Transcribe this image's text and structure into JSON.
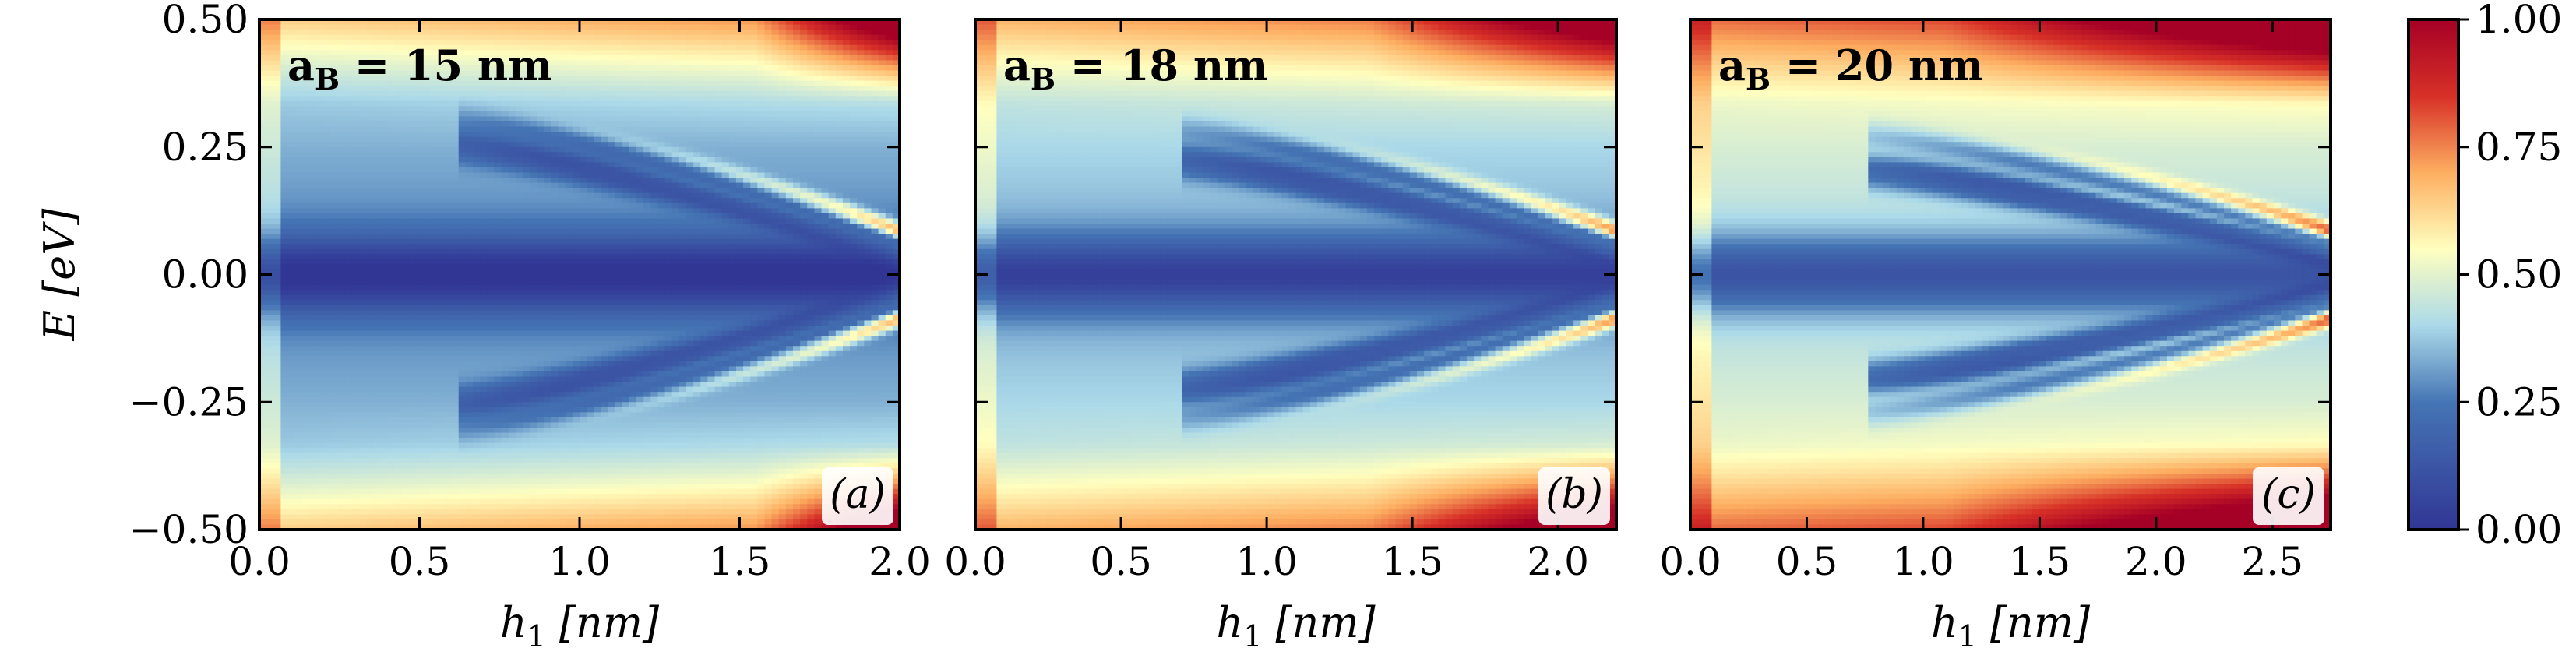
{
  "figure": {
    "colormap": "RdYlBu_r",
    "colors": {
      "low": "#313695",
      "mid_low": "#abd9e9",
      "mid": "#ffffbf",
      "mid_high": "#fdae61",
      "high": "#a50026"
    }
  },
  "chart_data": [
    {
      "type": "heatmap",
      "panel": "(a)",
      "annotation": "a_B  =  15 nm",
      "param_symbol": "a",
      "param_subscript": "B",
      "param_text": "=  15 nm",
      "xlabel_symbol": "h",
      "xlabel_subscript": "1",
      "xlabel_unit": "[nm]",
      "ylabel_symbol": "E",
      "ylabel_unit": "[eV]",
      "xlim": [
        0.0,
        2.0
      ],
      "ylim": [
        -0.5,
        0.5
      ],
      "xticks": [
        "0.0",
        "0.5",
        "1.0",
        "1.5",
        "2.0"
      ],
      "xtick_values": [
        0.0,
        0.5,
        1.0,
        1.5,
        2.0
      ],
      "yticks": [
        "−0.50",
        "−0.25",
        "0.00",
        "0.25",
        "0.50"
      ],
      "ytick_values": [
        -0.5,
        -0.25,
        0.0,
        0.25,
        0.5
      ],
      "vmin": 0.0,
      "vmax": 1.0,
      "background_value": 0.28,
      "edge_value": 0.78,
      "edge_onset_x": 1.55,
      "band_start_x": 0.62,
      "bands": [
        {
          "E0": 0.26,
          "slope": 0.1,
          "value": 0.03
        },
        {
          "E0": 0.24,
          "slope": 0.055,
          "value": 0.12
        },
        {
          "E0": 0.3,
          "slope": 0.14,
          "value": 0.2
        }
      ]
    },
    {
      "type": "heatmap",
      "panel": "(b)",
      "annotation": "a_B  =  18 nm",
      "param_symbol": "a",
      "param_subscript": "B",
      "param_text": "=  18 nm",
      "xlabel_symbol": "h",
      "xlabel_subscript": "1",
      "xlabel_unit": "[nm]",
      "xlim": [
        0.0,
        2.2
      ],
      "ylim": [
        -0.5,
        0.5
      ],
      "xticks": [
        "0.0",
        "0.5",
        "1.0",
        "1.5",
        "2.0"
      ],
      "xtick_values": [
        0.0,
        0.5,
        1.0,
        1.5,
        2.0
      ],
      "yticks": [
        "−0.50",
        "−0.25",
        "0.00",
        "0.25",
        "0.50"
      ],
      "ytick_values": [
        -0.5,
        -0.25,
        0.0,
        0.25,
        0.5
      ],
      "vmin": 0.0,
      "vmax": 1.0,
      "background_value": 0.34,
      "edge_value": 0.8,
      "edge_onset_x": 1.35,
      "band_start_x": 0.7,
      "bands": [
        {
          "E0": 0.23,
          "slope": 0.11,
          "value": 0.03
        },
        {
          "E0": 0.21,
          "slope": 0.06,
          "value": 0.14
        },
        {
          "E0": 0.28,
          "slope": 0.15,
          "value": 0.22
        }
      ]
    },
    {
      "type": "heatmap",
      "panel": "(c)",
      "annotation": "a_B  =  20 nm",
      "param_symbol": "a",
      "param_subscript": "B",
      "param_text": "=  20 nm",
      "xlabel_symbol": "h",
      "xlabel_subscript": "1",
      "xlabel_unit": "[nm]",
      "xlim": [
        0.0,
        2.75
      ],
      "ylim": [
        -0.5,
        0.5
      ],
      "xticks": [
        "0.0",
        "0.5",
        "1.0",
        "1.5",
        "2.0",
        "2.5"
      ],
      "xtick_values": [
        0.0,
        0.5,
        1.0,
        1.5,
        2.0,
        2.5
      ],
      "yticks": [
        "−0.50",
        "−0.25",
        "0.00",
        "0.25",
        "0.50"
      ],
      "ytick_values": [
        -0.5,
        -0.25,
        0.0,
        0.25,
        0.5
      ],
      "vmin": 0.0,
      "vmax": 1.0,
      "background_value": 0.42,
      "edge_value": 0.92,
      "edge_onset_x": 1.1,
      "band_start_x": 0.75,
      "bands": [
        {
          "E0": 0.21,
          "slope": 0.095,
          "value": 0.03
        },
        {
          "E0": 0.19,
          "slope": 0.05,
          "value": 0.16
        },
        {
          "E0": 0.27,
          "slope": 0.12,
          "value": 0.26
        }
      ]
    }
  ],
  "colorbar": {
    "vmin": 0.0,
    "vmax": 1.0,
    "ticks": [
      "0.00",
      "0.25",
      "0.50",
      "0.75",
      "1.00"
    ],
    "tick_values": [
      0.0,
      0.25,
      0.5,
      0.75,
      1.0
    ]
  }
}
